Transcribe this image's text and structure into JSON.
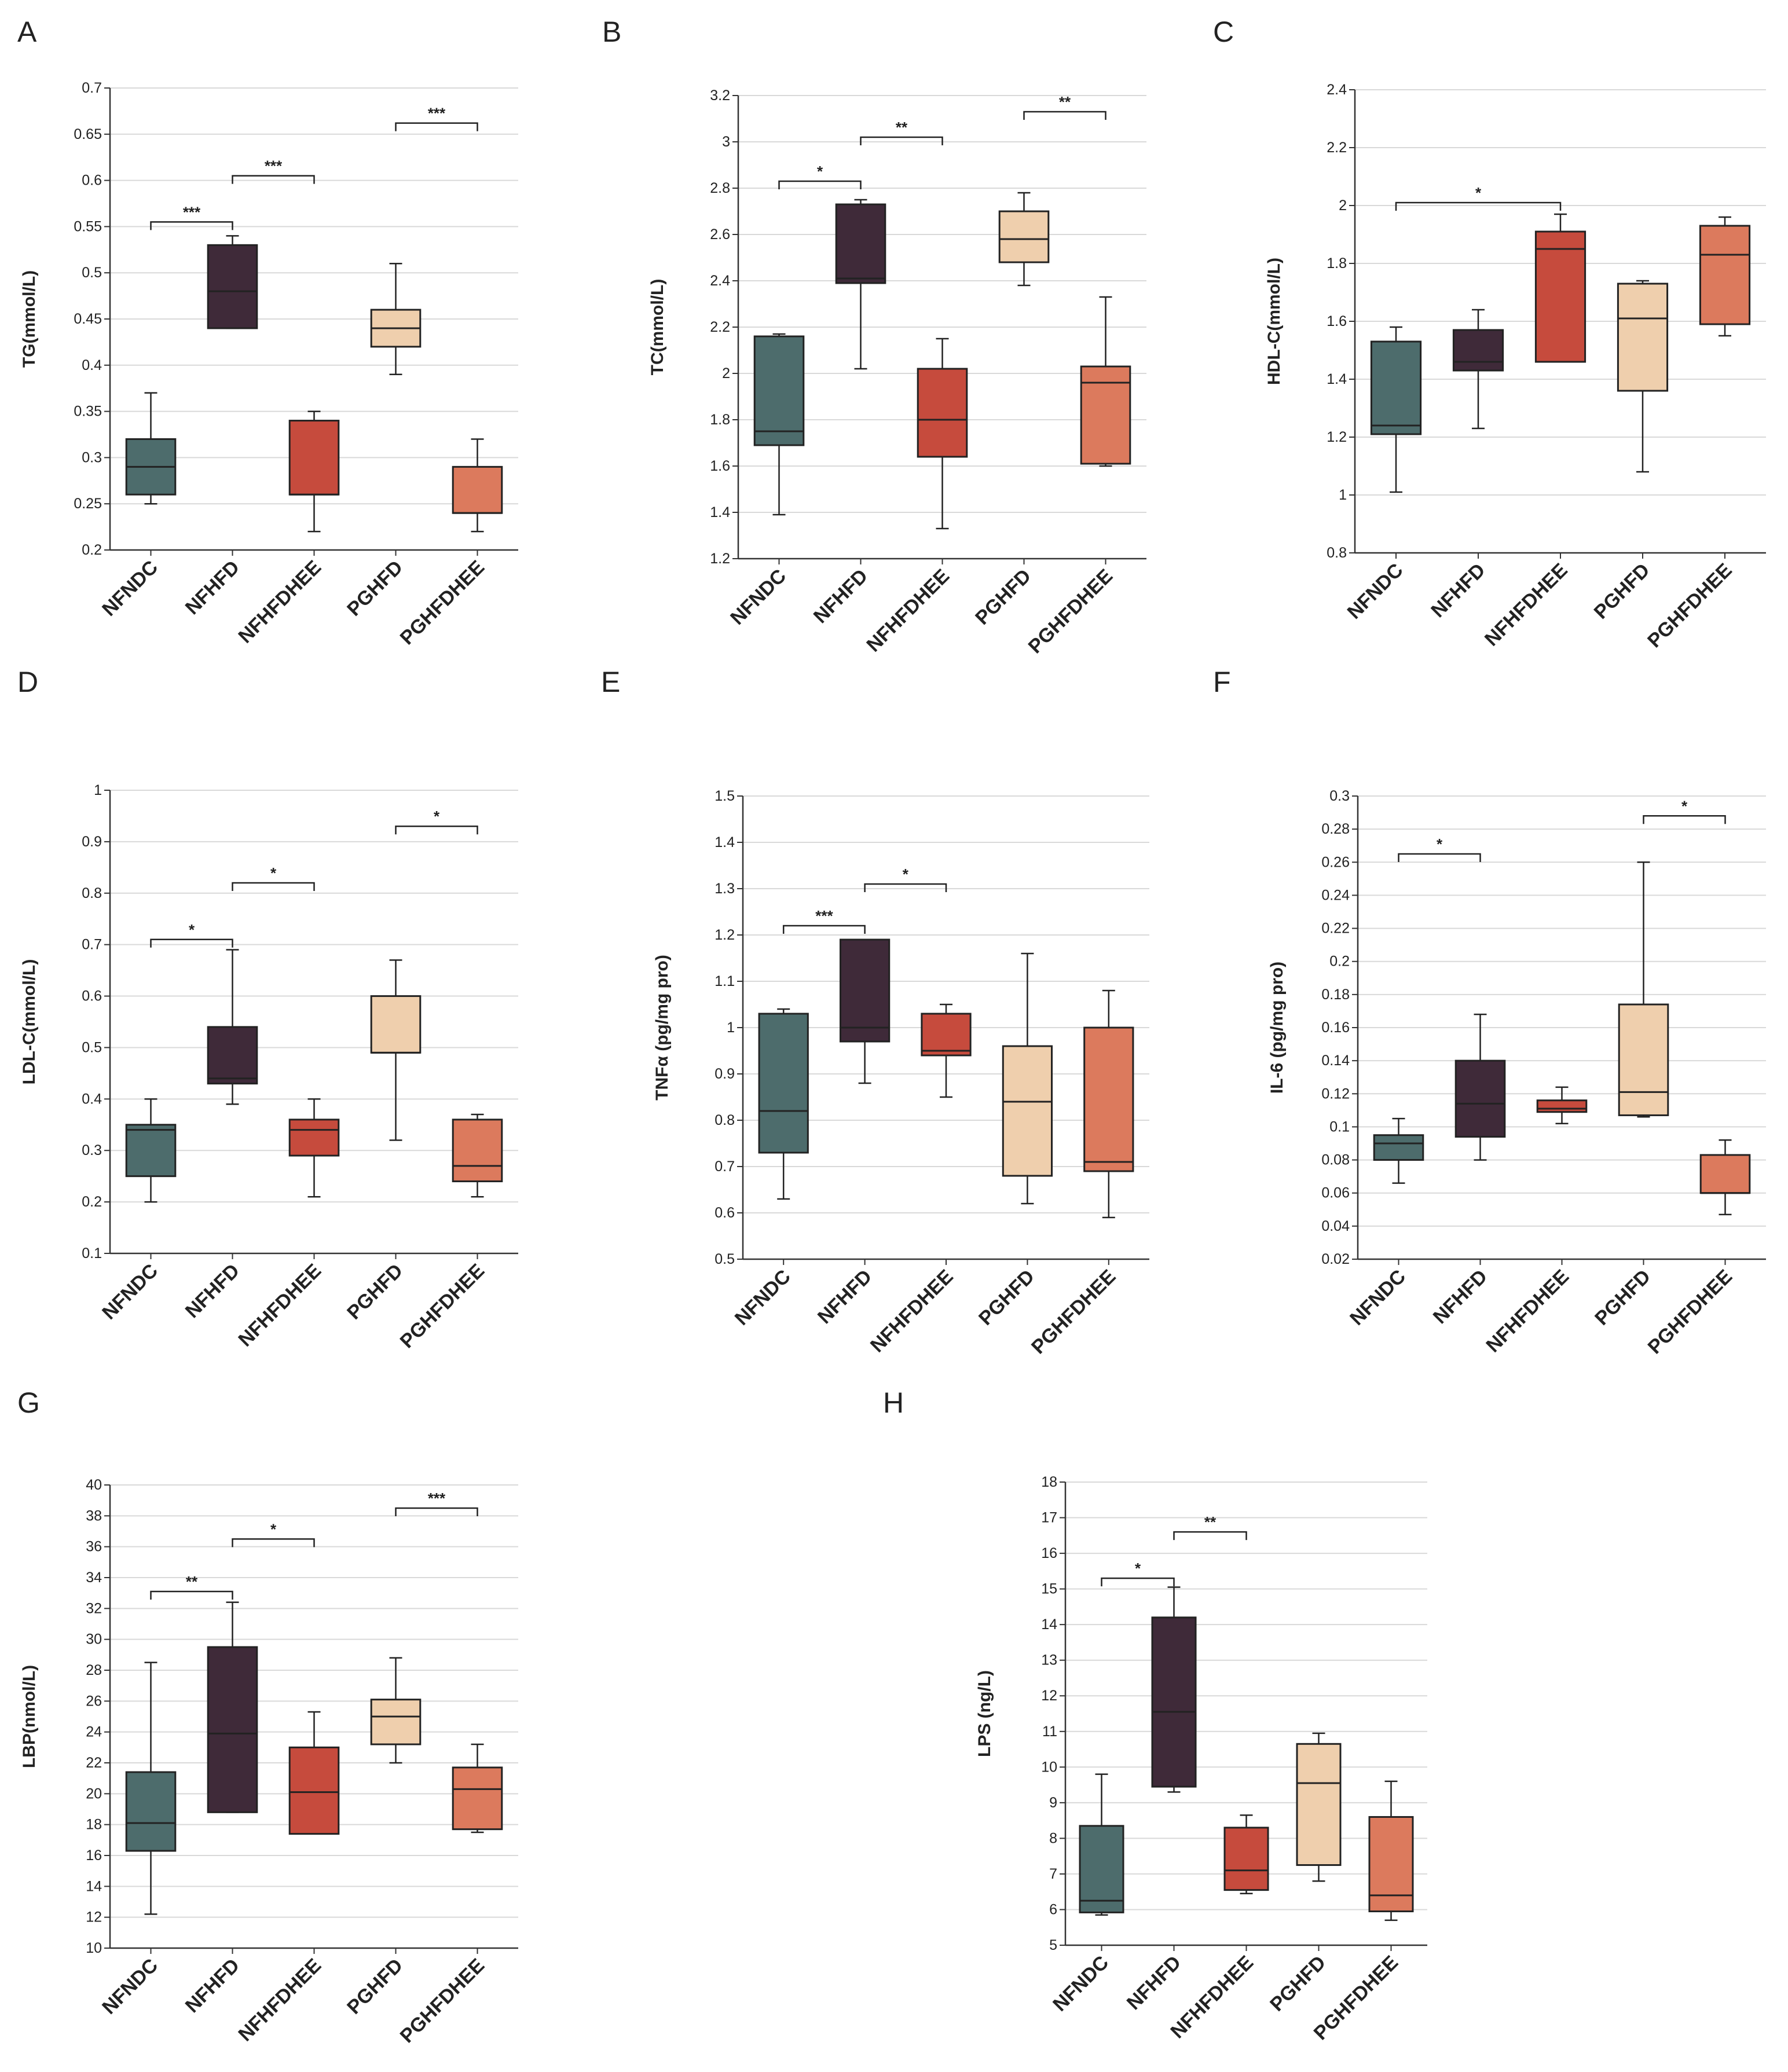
{
  "figure": {
    "group_colors": {
      "NFNDC": "#4d6c6c",
      "NFHFD": "#3f2a39",
      "NFHFDHEE": "#c64b3d",
      "PGHFD": "#efcfad",
      "PGHFDHEE": "#dc7a5d"
    }
  },
  "chart_data": [
    {
      "panel": "A",
      "type": "box",
      "ylabel": "TG(mmol/L)",
      "categories": [
        "NFNDC",
        "NFHFD",
        "NFHFDHEE",
        "PGHFD",
        "PGHFDHEE"
      ],
      "ylim": [
        0.2,
        0.7
      ],
      "yticks": [
        0.2,
        0.25,
        0.3,
        0.35,
        0.4,
        0.45,
        0.5,
        0.55,
        0.6,
        0.65,
        0.7
      ],
      "ytick_labels": [
        "0.2",
        "0.25",
        "0.3",
        "0.35",
        "0.4",
        "0.45",
        "0.5",
        "0.55",
        "0.6",
        "0.65",
        "0.7"
      ],
      "boxes": [
        {
          "min": 0.25,
          "q1": 0.26,
          "median": 0.29,
          "q3": 0.32,
          "max": 0.37
        },
        {
          "min": 0.44,
          "q1": 0.44,
          "median": 0.48,
          "q3": 0.53,
          "max": 0.54
        },
        {
          "min": 0.22,
          "q1": 0.26,
          "median": 0.26,
          "q3": 0.34,
          "max": 0.35
        },
        {
          "min": 0.39,
          "q1": 0.42,
          "median": 0.44,
          "q3": 0.46,
          "max": 0.51
        },
        {
          "min": 0.22,
          "q1": 0.24,
          "median": 0.24,
          "q3": 0.29,
          "max": 0.32
        }
      ],
      "significance": [
        {
          "from": 0,
          "to": 1,
          "label": "***",
          "y": 0.555
        },
        {
          "from": 1,
          "to": 2,
          "label": "***",
          "y": 0.605
        },
        {
          "from": 3,
          "to": 4,
          "label": "***",
          "y": 0.662
        }
      ]
    },
    {
      "panel": "B",
      "type": "box",
      "ylabel": "TC(mmol/L)",
      "categories": [
        "NFNDC",
        "NFHFD",
        "NFHFDHEE",
        "PGHFD",
        "PGHFDHEE"
      ],
      "ylim": [
        1.2,
        3.2
      ],
      "yticks": [
        1.2,
        1.4,
        1.6,
        1.8,
        2,
        2.2,
        2.4,
        2.6,
        2.8,
        3,
        3.2
      ],
      "ytick_labels": [
        "1.2",
        "1.4",
        "1.6",
        "1.8",
        "2",
        "2.2",
        "2.4",
        "2.6",
        "2.8",
        "3",
        "3.2"
      ],
      "boxes": [
        {
          "min": 1.39,
          "q1": 1.69,
          "median": 1.75,
          "q3": 2.16,
          "max": 2.17
        },
        {
          "min": 2.02,
          "q1": 2.39,
          "median": 2.41,
          "q3": 2.73,
          "max": 2.75
        },
        {
          "min": 1.33,
          "q1": 1.64,
          "median": 1.8,
          "q3": 2.02,
          "max": 2.15
        },
        {
          "min": 2.38,
          "q1": 2.48,
          "median": 2.58,
          "q3": 2.7,
          "max": 2.78
        },
        {
          "min": 1.6,
          "q1": 1.61,
          "median": 1.96,
          "q3": 2.03,
          "max": 2.33
        }
      ],
      "significance": [
        {
          "from": 0,
          "to": 1,
          "label": "*",
          "y": 2.83
        },
        {
          "from": 1,
          "to": 2,
          "label": "**",
          "y": 3.02
        },
        {
          "from": 3,
          "to": 4,
          "label": "**",
          "y": 3.13
        }
      ]
    },
    {
      "panel": "C",
      "type": "box",
      "ylabel": "HDL-C(mmol/L)",
      "categories": [
        "NFNDC",
        "NFHFD",
        "NFHFDHEE",
        "PGHFD",
        "PGHFDHEE"
      ],
      "ylim": [
        0.8,
        2.4
      ],
      "yticks": [
        0.8,
        1,
        1.2,
        1.4,
        1.6,
        1.8,
        2,
        2.2,
        2.4
      ],
      "ytick_labels": [
        "0.8",
        "1",
        "1.2",
        "1.4",
        "1.6",
        "1.8",
        "2",
        "2.2",
        "2.4"
      ],
      "boxes": [
        {
          "min": 1.01,
          "q1": 1.21,
          "median": 1.24,
          "q3": 1.53,
          "max": 1.58
        },
        {
          "min": 1.23,
          "q1": 1.43,
          "median": 1.46,
          "q3": 1.57,
          "max": 1.64
        },
        {
          "min": 1.46,
          "q1": 1.46,
          "median": 1.85,
          "q3": 1.91,
          "max": 1.97
        },
        {
          "min": 1.08,
          "q1": 1.36,
          "median": 1.61,
          "q3": 1.73,
          "max": 1.74
        },
        {
          "min": 1.55,
          "q1": 1.59,
          "median": 1.83,
          "q3": 1.93,
          "max": 1.96
        }
      ],
      "significance": [
        {
          "from": 0,
          "to": 2,
          "label": "*",
          "y": 2.01
        }
      ]
    },
    {
      "panel": "D",
      "type": "box",
      "ylabel": "LDL-C(mmol/L)",
      "categories": [
        "NFNDC",
        "NFHFD",
        "NFHFDHEE",
        "PGHFD",
        "PGHFDHEE"
      ],
      "ylim": [
        0.1,
        1
      ],
      "yticks": [
        0.1,
        0.2,
        0.3,
        0.4,
        0.5,
        0.6,
        0.7,
        0.8,
        0.9,
        1
      ],
      "ytick_labels": [
        "0.1",
        "0.2",
        "0.3",
        "0.4",
        "0.5",
        "0.6",
        "0.7",
        "0.8",
        "0.9",
        "1"
      ],
      "boxes": [
        {
          "min": 0.2,
          "q1": 0.25,
          "median": 0.34,
          "q3": 0.35,
          "max": 0.4
        },
        {
          "min": 0.39,
          "q1": 0.43,
          "median": 0.44,
          "q3": 0.54,
          "max": 0.69
        },
        {
          "min": 0.21,
          "q1": 0.29,
          "median": 0.34,
          "q3": 0.36,
          "max": 0.4
        },
        {
          "min": 0.32,
          "q1": 0.49,
          "median": 0.49,
          "q3": 0.6,
          "max": 0.67
        },
        {
          "min": 0.21,
          "q1": 0.24,
          "median": 0.27,
          "q3": 0.36,
          "max": 0.37
        }
      ],
      "significance": [
        {
          "from": 0,
          "to": 1,
          "label": "*",
          "y": 0.71
        },
        {
          "from": 1,
          "to": 2,
          "label": "*",
          "y": 0.82
        },
        {
          "from": 3,
          "to": 4,
          "label": "*",
          "y": 0.93
        }
      ]
    },
    {
      "panel": "E",
      "type": "box",
      "ylabel": "TNFα (pg/mg pro)",
      "categories": [
        "NFNDC",
        "NFHFD",
        "NFHFDHEE",
        "PGHFD",
        "PGHFDHEE"
      ],
      "ylim": [
        0.5,
        1.5
      ],
      "yticks": [
        0.5,
        0.6,
        0.7,
        0.8,
        0.9,
        1,
        1.1,
        1.2,
        1.3,
        1.4,
        1.5
      ],
      "ytick_labels": [
        "0.5",
        "0.6",
        "0.7",
        "0.8",
        "0.9",
        "1",
        "1.1",
        "1.2",
        "1.3",
        "1.4",
        "1.5"
      ],
      "boxes": [
        {
          "min": 0.63,
          "q1": 0.73,
          "median": 0.82,
          "q3": 1.03,
          "max": 1.04
        },
        {
          "min": 0.88,
          "q1": 0.97,
          "median": 1.0,
          "q3": 1.19,
          "max": 1.19
        },
        {
          "min": 0.85,
          "q1": 0.94,
          "median": 0.95,
          "q3": 1.03,
          "max": 1.05
        },
        {
          "min": 0.62,
          "q1": 0.68,
          "median": 0.84,
          "q3": 0.96,
          "max": 1.16
        },
        {
          "min": 0.59,
          "q1": 0.69,
          "median": 0.71,
          "q3": 1.0,
          "max": 1.08
        }
      ],
      "significance": [
        {
          "from": 0,
          "to": 1,
          "label": "***",
          "y": 1.22
        },
        {
          "from": 1,
          "to": 2,
          "label": "*",
          "y": 1.31
        }
      ]
    },
    {
      "panel": "F",
      "type": "box",
      "ylabel": "IL-6 (pg/mg pro)",
      "categories": [
        "NFNDC",
        "NFHFD",
        "NFHFDHEE",
        "PGHFD",
        "PGHFDHEE"
      ],
      "ylim": [
        0.02,
        0.3
      ],
      "yticks": [
        0.02,
        0.04,
        0.06,
        0.08,
        0.1,
        0.12,
        0.14,
        0.16,
        0.18,
        0.2,
        0.22,
        0.24,
        0.26,
        0.28,
        0.3
      ],
      "ytick_labels": [
        "0.02",
        "0.04",
        "0.06",
        "0.08",
        "0.1",
        "0.12",
        "0.14",
        "0.16",
        "0.18",
        "0.2",
        "0.22",
        "0.24",
        "0.26",
        "0.28",
        "0.3"
      ],
      "boxes": [
        {
          "min": 0.066,
          "q1": 0.08,
          "median": 0.09,
          "q3": 0.095,
          "max": 0.105
        },
        {
          "min": 0.08,
          "q1": 0.094,
          "median": 0.114,
          "q3": 0.14,
          "max": 0.168
        },
        {
          "min": 0.102,
          "q1": 0.109,
          "median": 0.111,
          "q3": 0.116,
          "max": 0.124
        },
        {
          "min": 0.106,
          "q1": 0.107,
          "median": 0.121,
          "q3": 0.174,
          "max": 0.26
        },
        {
          "min": 0.047,
          "q1": 0.06,
          "median": 0.06,
          "q3": 0.083,
          "max": 0.092
        }
      ],
      "significance": [
        {
          "from": 0,
          "to": 1,
          "label": "*",
          "y": 0.265
        },
        {
          "from": 3,
          "to": 4,
          "label": "*",
          "y": 0.288
        }
      ]
    },
    {
      "panel": "G",
      "type": "box",
      "ylabel": "LBP(nmol/L)",
      "categories": [
        "NFNDC",
        "NFHFD",
        "NFHFDHEE",
        "PGHFD",
        "PGHFDHEE"
      ],
      "ylim": [
        10,
        40
      ],
      "yticks": [
        10,
        12,
        14,
        16,
        18,
        20,
        22,
        24,
        26,
        28,
        30,
        32,
        34,
        36,
        38,
        40
      ],
      "ytick_labels": [
        "10",
        "12",
        "14",
        "16",
        "18",
        "20",
        "22",
        "24",
        "26",
        "28",
        "30",
        "32",
        "34",
        "36",
        "38",
        "40"
      ],
      "boxes": [
        {
          "min": 12.2,
          "q1": 16.3,
          "median": 18.1,
          "q3": 21.4,
          "max": 28.5
        },
        {
          "min": 18.8,
          "q1": 18.8,
          "median": 23.9,
          "q3": 29.5,
          "max": 32.4
        },
        {
          "min": 17.4,
          "q1": 17.4,
          "median": 20.1,
          "q3": 23.0,
          "max": 25.3
        },
        {
          "min": 22.0,
          "q1": 23.2,
          "median": 25.0,
          "q3": 26.1,
          "max": 28.8
        },
        {
          "min": 17.5,
          "q1": 17.7,
          "median": 20.3,
          "q3": 21.7,
          "max": 23.2
        }
      ],
      "significance": [
        {
          "from": 0,
          "to": 1,
          "label": "**",
          "y": 33.1
        },
        {
          "from": 1,
          "to": 2,
          "label": "*",
          "y": 36.5
        },
        {
          "from": 3,
          "to": 4,
          "label": "***",
          "y": 38.5
        }
      ]
    },
    {
      "panel": "H",
      "type": "box",
      "ylabel": "LPS (ng/L)",
      "categories": [
        "NFNDC",
        "NFHFD",
        "NFHFDHEE",
        "PGHFD",
        "PGHFDHEE"
      ],
      "ylim": [
        5,
        18
      ],
      "yticks": [
        5,
        6,
        7,
        8,
        9,
        10,
        11,
        12,
        13,
        14,
        15,
        16,
        17,
        18
      ],
      "ytick_labels": [
        "5",
        "6",
        "7",
        "8",
        "9",
        "10",
        "11",
        "12",
        "13",
        "14",
        "15",
        "16",
        "17",
        "18"
      ],
      "boxes": [
        {
          "min": 5.85,
          "q1": 5.92,
          "median": 6.25,
          "q3": 8.35,
          "max": 9.8
        },
        {
          "min": 9.3,
          "q1": 9.45,
          "median": 11.55,
          "q3": 14.2,
          "max": 15.05
        },
        {
          "min": 6.45,
          "q1": 6.55,
          "median": 7.1,
          "q3": 8.3,
          "max": 8.65
        },
        {
          "min": 6.8,
          "q1": 7.25,
          "median": 9.55,
          "q3": 10.65,
          "max": 10.95
        },
        {
          "min": 5.7,
          "q1": 5.95,
          "median": 6.4,
          "q3": 8.6,
          "max": 9.6
        }
      ],
      "significance": [
        {
          "from": 0,
          "to": 1,
          "label": "*",
          "y": 15.3
        },
        {
          "from": 1,
          "to": 2,
          "label": "**",
          "y": 16.6
        }
      ]
    }
  ]
}
